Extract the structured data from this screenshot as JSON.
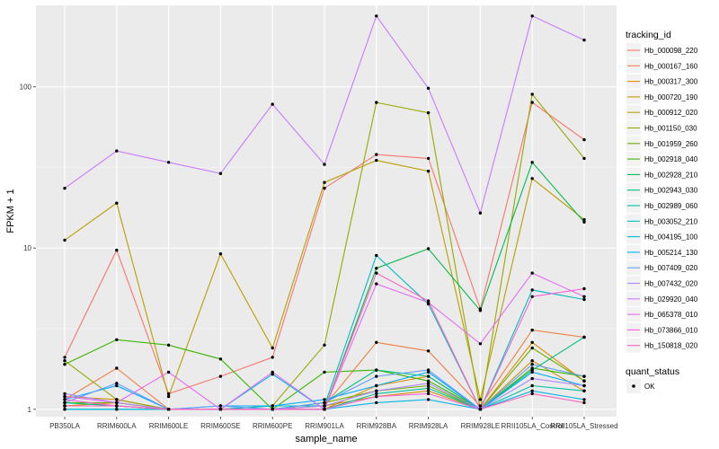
{
  "chart_data": {
    "type": "line",
    "title": "",
    "xlabel": "sample_name",
    "ylabel": "FPKM + 1",
    "yscale": "log10",
    "ylim": [
      0.9,
      320
    ],
    "yticks": [
      1,
      10,
      100
    ],
    "ytick_labels": [
      "1",
      "10",
      "100"
    ],
    "grid": true,
    "legend_position": "right",
    "categories": [
      "PB350LA",
      "RRIM600LA",
      "RRIM600LE",
      "RRIM600SE",
      "RRIM600PE",
      "RRIM901LA",
      "RRIM928BA",
      "RRIM928LA",
      "RRIM928LE",
      "RRII105LA_Control",
      "RRII105LA_Stressed"
    ],
    "legend_title": "tracking_id",
    "series": [
      {
        "name": "Hb_000098_220",
        "color": "#F8766D",
        "values": [
          2.1,
          9.7,
          1.25,
          1.6,
          2.1,
          23.5,
          38,
          36,
          4.2,
          80,
          47
        ]
      },
      {
        "name": "Hb_000167_160",
        "color": "#EF7F46",
        "values": [
          1.15,
          1.8,
          1.0,
          1.0,
          1.0,
          1.05,
          2.6,
          2.3,
          1.05,
          3.1,
          2.8
        ]
      },
      {
        "name": "Hb_000317_300",
        "color": "#E18A00",
        "values": [
          1.05,
          1.1,
          1.0,
          1.0,
          1.0,
          1.0,
          1.4,
          1.6,
          1.0,
          2.6,
          1.5
        ]
      },
      {
        "name": "Hb_000720_190",
        "color": "#CF9400",
        "values": [
          1.2,
          1.15,
          1.0,
          1.0,
          1.0,
          1.05,
          1.2,
          1.3,
          1.0,
          2.0,
          1.3
        ]
      },
      {
        "name": "Hb_000912_020",
        "color": "#B79F00",
        "values": [
          11.2,
          19,
          1.2,
          9.2,
          2.4,
          25.5,
          35,
          30,
          1.15,
          27,
          15
        ]
      },
      {
        "name": "Hb_001150_030",
        "color": "#9AA800",
        "values": [
          2.0,
          1.15,
          1.0,
          1.0,
          1.05,
          2.5,
          80,
          69,
          1.0,
          90,
          36
        ]
      },
      {
        "name": "Hb_001959_260",
        "color": "#72B000",
        "values": [
          1.1,
          1.1,
          1.0,
          1.0,
          1.0,
          1.1,
          1.3,
          1.4,
          1.0,
          2.4,
          1.5
        ]
      },
      {
        "name": "Hb_002918_040",
        "color": "#39B600",
        "values": [
          1.9,
          2.7,
          2.5,
          2.05,
          1.0,
          1.7,
          1.75,
          1.5,
          1.0,
          1.8,
          1.6
        ]
      },
      {
        "name": "Hb_002928_210",
        "color": "#00BB4E",
        "values": [
          1.05,
          1.05,
          1.0,
          1.0,
          1.0,
          1.0,
          7.5,
          9.9,
          4.1,
          34,
          14.5
        ]
      },
      {
        "name": "Hb_002943_030",
        "color": "#00BF7D",
        "values": [
          1.1,
          1.05,
          1.0,
          1.0,
          1.0,
          1.1,
          1.75,
          1.6,
          1.0,
          1.75,
          2.8
        ]
      },
      {
        "name": "Hb_002989_060",
        "color": "#00C1A3",
        "values": [
          1.0,
          1.0,
          1.0,
          1.0,
          1.0,
          1.0,
          1.25,
          1.35,
          1.0,
          1.4,
          1.3
        ]
      },
      {
        "name": "Hb_003052_210",
        "color": "#00BCC4",
        "values": [
          1.05,
          1.05,
          1.0,
          1.0,
          1.05,
          1.05,
          9.0,
          4.5,
          1.0,
          5.5,
          4.8
        ]
      },
      {
        "name": "Hb_004195_100",
        "color": "#00B8E5",
        "values": [
          1.0,
          1.0,
          1.0,
          1.0,
          1.65,
          1.0,
          1.1,
          1.15,
          1.0,
          1.3,
          1.15
        ]
      },
      {
        "name": "Hb_005214_130",
        "color": "#00ADFA",
        "values": [
          1.15,
          1.4,
          1.0,
          1.05,
          1.05,
          1.15,
          1.4,
          1.7,
          1.0,
          1.7,
          1.4
        ]
      },
      {
        "name": "Hb_007409_020",
        "color": "#619CFF",
        "values": [
          1.1,
          1.45,
          1.0,
          1.05,
          1.0,
          1.1,
          1.6,
          1.75,
          1.0,
          1.9,
          1.6
        ]
      },
      {
        "name": "Hb_007432_020",
        "color": "#AD89FF",
        "values": [
          1.25,
          1.1,
          1.0,
          1.0,
          1.0,
          1.05,
          1.3,
          1.45,
          1.0,
          1.55,
          1.4
        ]
      },
      {
        "name": "Hb_029920_040",
        "color": "#C77CFF",
        "values": [
          23.5,
          40,
          34,
          29,
          78,
          33,
          275,
          98,
          16.5,
          275,
          195
        ]
      },
      {
        "name": "Hb_065378_010",
        "color": "#E76BF3",
        "values": [
          1.2,
          1.1,
          1.7,
          1.0,
          1.7,
          1.0,
          6.0,
          4.6,
          2.55,
          7.0,
          5.0
        ]
      },
      {
        "name": "Hb_073866_010",
        "color": "#FA62DB",
        "values": [
          1.15,
          1.05,
          1.0,
          1.0,
          1.0,
          1.0,
          1.2,
          1.25,
          1.0,
          5.0,
          5.6
        ]
      },
      {
        "name": "Hb_150818_020",
        "color": "#FF62BC",
        "values": [
          1.05,
          1.05,
          1.0,
          1.0,
          1.0,
          1.0,
          7.0,
          4.7,
          1.0,
          1.25,
          1.1
        ]
      }
    ],
    "quant_status_legend": {
      "title": "quant_status",
      "label": "OK"
    }
  }
}
